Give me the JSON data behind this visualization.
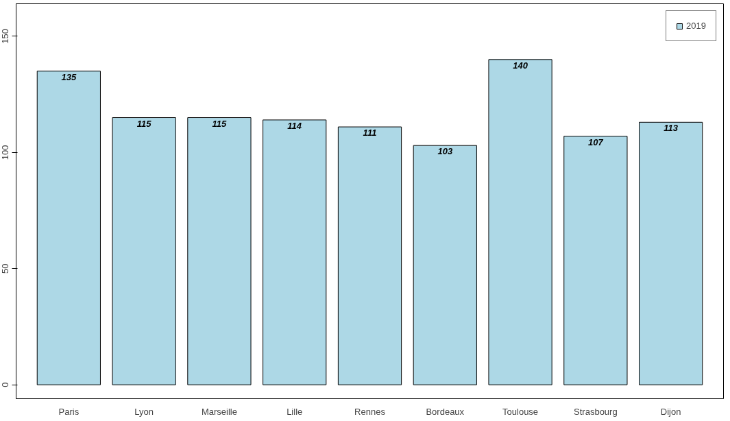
{
  "chart_data": {
    "type": "bar",
    "categories": [
      "Paris",
      "Lyon",
      "Marseille",
      "Lille",
      "Rennes",
      "Bordeaux",
      "Toulouse",
      "Strasbourg",
      "Dijon"
    ],
    "series": [
      {
        "name": "2019",
        "color": "#add8e6",
        "values": [
          135,
          115,
          115,
          114,
          111,
          103,
          140,
          107,
          113
        ]
      }
    ],
    "ylim": [
      -6,
      164
    ],
    "yticks": [
      0,
      50,
      100,
      150
    ],
    "data_labels": true,
    "legend": "top right",
    "grid": false
  }
}
